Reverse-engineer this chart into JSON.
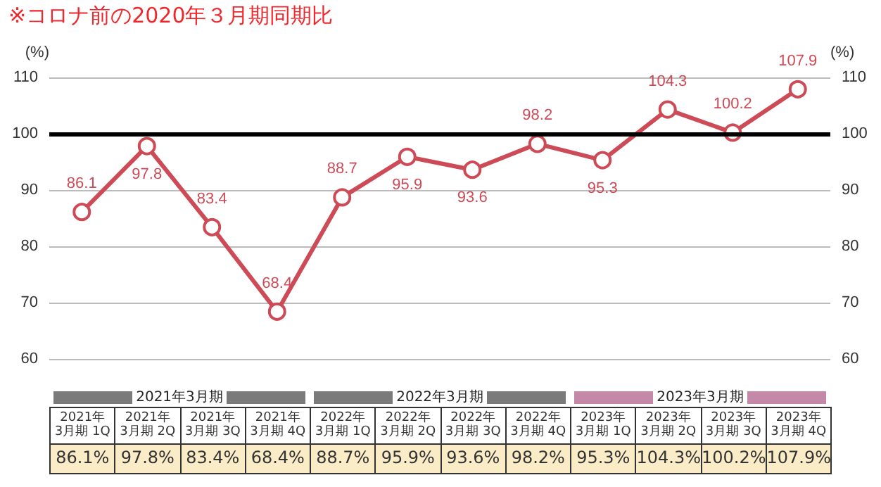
{
  "chart_data": {
    "type": "line",
    "title": "※コロナ前の2020年３月期同期比",
    "categories": [
      "2021年\n3月期 1Q",
      "2021年\n3月期 2Q",
      "2021年\n3月期 3Q",
      "2021年\n3月期 4Q",
      "2022年\n3月期 1Q",
      "2022年\n3月期 2Q",
      "2022年\n3月期 3Q",
      "2022年\n3月期 4Q",
      "2023年\n3月期 1Q",
      "2023年\n3月期 2Q",
      "2023年\n3月期 3Q",
      "2023年\n3月期 4Q"
    ],
    "series": [
      {
        "color": "#cc4b57",
        "values": [
          86.1,
          97.8,
          83.4,
          68.4,
          88.7,
          95.9,
          93.6,
          98.2,
          95.3,
          104.3,
          100.2,
          107.9
        ]
      }
    ],
    "data_labels": true,
    "marker": "circle",
    "line_style": "solid",
    "grid": "y",
    "ylabel": "(%)",
    "y2label": "(%)",
    "ylim": [
      60,
      110
    ],
    "yticks": [
      60,
      70,
      80,
      90,
      100,
      110
    ],
    "y2lim": [
      60,
      110
    ],
    "y2ticks": [
      60,
      70,
      80,
      90,
      100,
      110
    ],
    "ref_lines": [
      {
        "axis": "y",
        "value": 100,
        "color": "#000000"
      }
    ],
    "annotations": [
      "2021年3月期",
      "2022年3月期",
      "2023年3月期",
      "86.1%",
      "97.8%",
      "83.4%",
      "68.4%",
      "88.7%",
      "95.9%",
      "93.6%",
      "98.2%",
      "95.3%",
      "104.3%",
      "100.2%",
      "107.9%"
    ]
  }
}
